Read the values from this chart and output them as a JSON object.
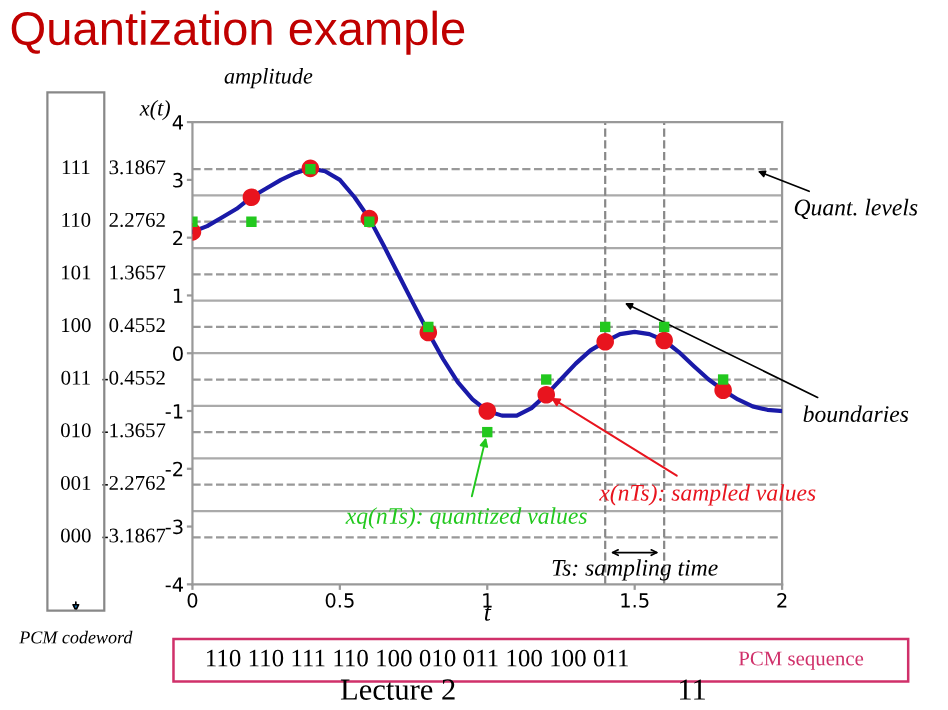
{
  "chart_data": {
    "type": "line",
    "title": "Quantization example",
    "xlabel": "t",
    "ylabel": "amplitude\nx(t)",
    "xlim": [
      0,
      2
    ],
    "xticks": [
      0,
      0.5,
      1,
      1.5,
      2
    ],
    "ylim": [
      -4,
      4
    ],
    "yticks": [
      -4,
      -3,
      -2,
      -1,
      0,
      1,
      2,
      3,
      4
    ],
    "grid": false,
    "legend": false,
    "series": [
      {
        "color": "#1a1aa8",
        "marker": "none",
        "x": [
          0,
          0.05,
          0.1,
          0.15,
          0.2,
          0.25,
          0.3,
          0.35,
          0.4,
          0.45,
          0.5,
          0.55,
          0.6,
          0.65,
          0.7,
          0.75,
          0.8,
          0.85,
          0.9,
          0.95,
          1.0,
          1.05,
          1.1,
          1.15,
          1.2,
          1.25,
          1.3,
          1.35,
          1.4,
          1.45,
          1.5,
          1.55,
          1.6,
          1.65,
          1.7,
          1.75,
          1.8,
          1.85,
          1.9,
          1.95,
          2.0
        ],
        "values": [
          2.1,
          2.2,
          2.35,
          2.5,
          2.7,
          2.85,
          3.0,
          3.12,
          3.2,
          3.15,
          3.0,
          2.7,
          2.33,
          1.85,
          1.35,
          0.85,
          0.36,
          -0.1,
          -0.5,
          -0.8,
          -1.0,
          -1.08,
          -1.08,
          -0.95,
          -0.72,
          -0.45,
          -0.18,
          0.05,
          0.2,
          0.33,
          0.37,
          0.33,
          0.22,
          0.02,
          -0.22,
          -0.45,
          -0.64,
          -0.8,
          -0.92,
          -0.98,
          -1.0
        ]
      },
      {
        "type": "scatter",
        "name": "x(nTs): sampled values",
        "color": "#e8141e",
        "marker": "circle",
        "x": [
          0,
          0.2,
          0.4,
          0.6,
          0.8,
          1.0,
          1.2,
          1.4,
          1.6,
          1.8
        ],
        "values": [
          2.1,
          2.7,
          3.2,
          2.33,
          0.36,
          -1.0,
          -0.72,
          0.2,
          0.22,
          -0.64
        ]
      },
      {
        "type": "scatter",
        "name": "xq(nTs): quantized values",
        "color": "#22c81e",
        "marker": "square",
        "x": [
          0,
          0.2,
          0.4,
          0.6,
          0.8,
          1.0,
          1.2,
          1.4,
          1.6,
          1.8
        ],
        "values": [
          2.2762,
          2.2762,
          3.1867,
          2.2762,
          0.4552,
          -1.3657,
          -0.4552,
          0.4552,
          0.4552,
          -0.4552
        ]
      }
    ],
    "ref_lines": [
      {
        "axis": "y",
        "value": 3.1867,
        "label": "3.1867",
        "line_style": "dashed",
        "color": "#999999"
      },
      {
        "axis": "y",
        "value": 2.2762,
        "label": "2.2762",
        "line_style": "dashed",
        "color": "#999999"
      },
      {
        "axis": "y",
        "value": 1.3657,
        "label": "1.3657",
        "line_style": "dashed",
        "color": "#999999"
      },
      {
        "axis": "y",
        "value": 0.4552,
        "label": "0.4552",
        "line_style": "dashed",
        "color": "#999999"
      },
      {
        "axis": "y",
        "value": -0.4552,
        "label": "-0.4552",
        "line_style": "dashed",
        "color": "#999999"
      },
      {
        "axis": "y",
        "value": -1.3657,
        "label": "-1.3657",
        "line_style": "dashed",
        "color": "#999999"
      },
      {
        "axis": "y",
        "value": -2.2762,
        "label": "-2.2762",
        "line_style": "dashed",
        "color": "#999999"
      },
      {
        "axis": "y",
        "value": -3.1867,
        "label": "-3.1867",
        "line_style": "dashed",
        "color": "#999999"
      },
      {
        "axis": "y",
        "value": 2.7314,
        "line_style": "solid",
        "color": "#aaaaaa"
      },
      {
        "axis": "y",
        "value": 1.821,
        "line_style": "solid",
        "color": "#aaaaaa"
      },
      {
        "axis": "y",
        "value": 0.9105,
        "line_style": "solid",
        "color": "#aaaaaa"
      },
      {
        "axis": "y",
        "value": 0,
        "line_style": "solid",
        "color": "#aaaaaa"
      },
      {
        "axis": "y",
        "value": -0.9105,
        "line_style": "solid",
        "color": "#aaaaaa"
      },
      {
        "axis": "y",
        "value": -1.821,
        "line_style": "solid",
        "color": "#aaaaaa"
      },
      {
        "axis": "y",
        "value": -2.7314,
        "line_style": "solid",
        "color": "#aaaaaa"
      },
      {
        "axis": "x",
        "value": 1.4,
        "line_style": "dashed",
        "color": "#888888"
      },
      {
        "axis": "x",
        "value": 1.6,
        "line_style": "dashed",
        "color": "#888888"
      }
    ],
    "annotations": [
      "111",
      "110",
      "101",
      "100",
      "011",
      "010",
      "001",
      "000",
      {
        "text": "Quant. levels",
        "x": 1.9,
        "y": 3.1867
      },
      {
        "text": "boundaries",
        "x": 1.45,
        "y": 0.9105
      },
      "Ts: sampling time",
      "PCM codeword",
      "110 110 111 110 100 010 011 100 100 011",
      "PCM sequence",
      "Lecture 2",
      "11"
    ]
  }
}
